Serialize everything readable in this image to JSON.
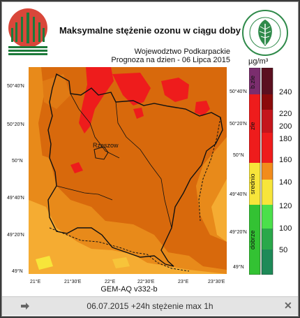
{
  "title": "Maksymalne stężenie ozonu w ciągu doby",
  "region": "Wojewodztwo Podkarpackie",
  "forecast": "Prognoza na dzien  -  06 Lipca 2015",
  "model": "GEM-AQ v332-b",
  "unit": "µg/m³",
  "lat_left": [
    "50°40'N",
    "50°20'N",
    "50°N",
    "49°40'N",
    "49°20'N",
    "49°N"
  ],
  "lat_right": [
    "50°40'N",
    "50°20'N",
    "50°N",
    "49°40'N",
    "49°20'N",
    "49°N"
  ],
  "lon": [
    "21°E",
    "21°30'E",
    "22°E",
    "22°30'E",
    "23°E",
    "23°30'E"
  ],
  "city": "Rzeszow",
  "legend_values": [
    "240",
    "220",
    "200",
    "180",
    "160",
    "140",
    "120",
    "100",
    "50"
  ],
  "legend_categories": [
    "b.zle",
    "zle",
    "srednio",
    "dobrze"
  ],
  "colors": {
    "orange_dark": "#d8690c",
    "orange": "#e88a1a",
    "orange_light": "#f5ac32",
    "red": "#ee1c1c",
    "yellow": "#f7e53a"
  },
  "footer": {
    "caption": "06.07.2015 +24h stężenie max 1h"
  }
}
